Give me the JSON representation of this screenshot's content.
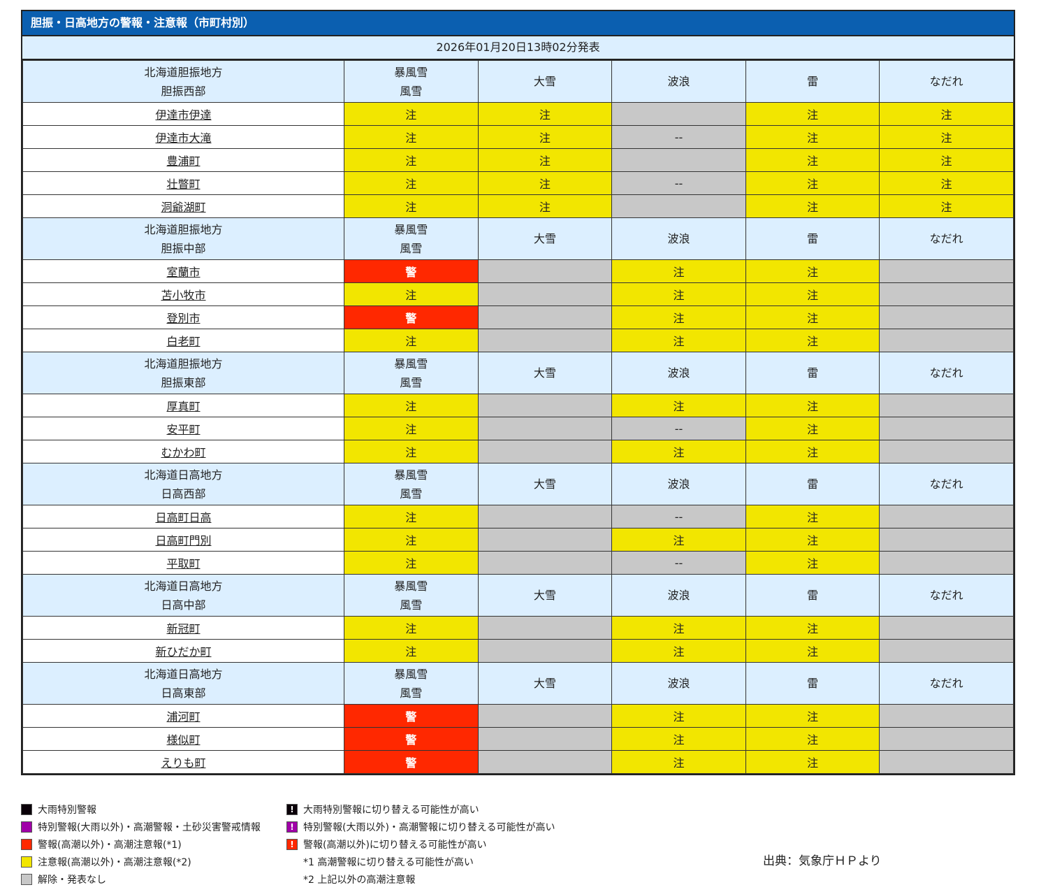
{
  "title": "胆振・日高地方の警報・注意報（市町村別）",
  "issued": "2026年01月20日13時02分発表",
  "columns": [
    "暴風雪\n風雪",
    "大雪",
    "波浪",
    "雷",
    "なだれ"
  ],
  "labels": {
    "c": "注",
    "w": "警",
    "d": "--",
    "g": ""
  },
  "colors": {
    "caution": "#f2e600",
    "warning": "#ff2800",
    "none": "#c8c8c8",
    "header": "#dcefff",
    "title": "#0b5fb0"
  },
  "groups": [
    {
      "region": "北海道胆振地方",
      "area": "胆振西部",
      "rows": [
        {
          "name": "伊達市伊達",
          "cells": [
            "c",
            "c",
            "g",
            "c",
            "c"
          ]
        },
        {
          "name": "伊達市大滝",
          "cells": [
            "c",
            "c",
            "d",
            "c",
            "c"
          ]
        },
        {
          "name": "豊浦町",
          "cells": [
            "c",
            "c",
            "g",
            "c",
            "c"
          ]
        },
        {
          "name": "壮瞥町",
          "cells": [
            "c",
            "c",
            "d",
            "c",
            "c"
          ]
        },
        {
          "name": "洞爺湖町",
          "cells": [
            "c",
            "c",
            "g",
            "c",
            "c"
          ]
        }
      ]
    },
    {
      "region": "北海道胆振地方",
      "area": "胆振中部",
      "rows": [
        {
          "name": "室蘭市",
          "cells": [
            "w",
            "g",
            "c",
            "c",
            "g"
          ]
        },
        {
          "name": "苫小牧市",
          "cells": [
            "c",
            "g",
            "c",
            "c",
            "g"
          ]
        },
        {
          "name": "登別市",
          "cells": [
            "w",
            "g",
            "c",
            "c",
            "g"
          ]
        },
        {
          "name": "白老町",
          "cells": [
            "c",
            "g",
            "c",
            "c",
            "g"
          ]
        }
      ]
    },
    {
      "region": "北海道胆振地方",
      "area": "胆振東部",
      "rows": [
        {
          "name": "厚真町",
          "cells": [
            "c",
            "g",
            "c",
            "c",
            "g"
          ]
        },
        {
          "name": "安平町",
          "cells": [
            "c",
            "g",
            "d",
            "c",
            "g"
          ]
        },
        {
          "name": "むかわ町",
          "cells": [
            "c",
            "g",
            "c",
            "c",
            "g"
          ]
        }
      ]
    },
    {
      "region": "北海道日高地方",
      "area": "日高西部",
      "rows": [
        {
          "name": "日高町日高",
          "cells": [
            "c",
            "g",
            "d",
            "c",
            "g"
          ]
        },
        {
          "name": "日高町門別",
          "cells": [
            "c",
            "g",
            "c",
            "c",
            "g"
          ]
        },
        {
          "name": "平取町",
          "cells": [
            "c",
            "g",
            "d",
            "c",
            "g"
          ]
        }
      ]
    },
    {
      "region": "北海道日高地方",
      "area": "日高中部",
      "rows": [
        {
          "name": "新冠町",
          "cells": [
            "c",
            "g",
            "c",
            "c",
            "g"
          ]
        },
        {
          "name": "新ひだか町",
          "cells": [
            "c",
            "g",
            "c",
            "c",
            "g"
          ]
        }
      ]
    },
    {
      "region": "北海道日高地方",
      "area": "日高東部",
      "rows": [
        {
          "name": "浦河町",
          "cells": [
            "w",
            "g",
            "c",
            "c",
            "g"
          ]
        },
        {
          "name": "様似町",
          "cells": [
            "w",
            "g",
            "c",
            "c",
            "g"
          ]
        },
        {
          "name": "えりも町",
          "cells": [
            "w",
            "g",
            "c",
            "c",
            "g"
          ]
        }
      ]
    }
  ],
  "legend_left": [
    {
      "color": "#0a0008",
      "text": "大雨特別警報"
    },
    {
      "color": "#a000a8",
      "text": "特別警報(大雨以外)・高潮警報・土砂災害警戒情報"
    },
    {
      "color": "#ff2800",
      "text": "警報(高潮以外)・高潮注意報(*1)"
    },
    {
      "color": "#f2e600",
      "text": "注意報(高潮以外)・高潮注意報(*2)"
    },
    {
      "color": "#c8c8c8",
      "text": "解除・発表なし"
    }
  ],
  "legend_right": [
    {
      "color": "#0a0008",
      "mark": "!",
      "text": "大雨特別警報に切り替える可能性が高い"
    },
    {
      "color": "#a000a8",
      "mark": "!",
      "text": "特別警報(大雨以外)・高潮警報に切り替える可能性が高い"
    },
    {
      "color": "#ff2800",
      "mark": "!",
      "text": "警報(高潮以外)に切り替える可能性が高い"
    },
    {
      "color": "",
      "mark": "",
      "text": "*1 高潮警報に切り替える可能性が高い"
    },
    {
      "color": "",
      "mark": "",
      "text": "*2 上記以外の高潮注意報"
    }
  ],
  "source": "出典：気象庁ＨＰより"
}
